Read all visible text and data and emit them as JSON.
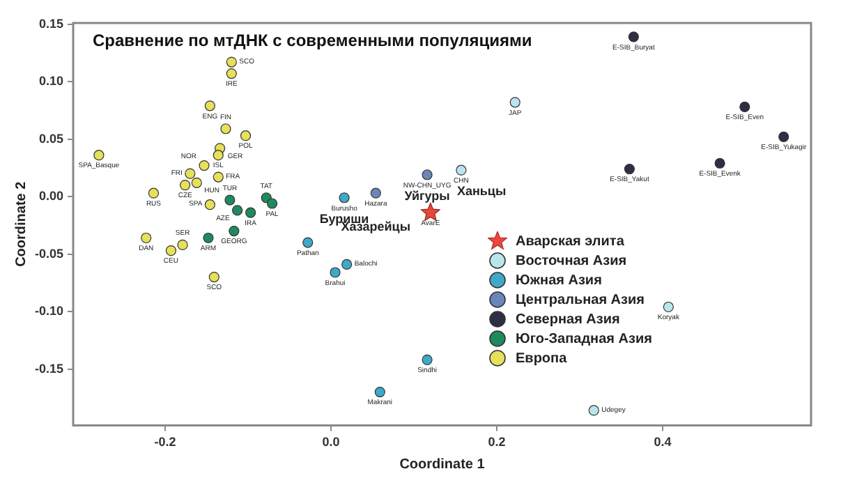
{
  "chart_data": {
    "type": "scatter",
    "title": "Сравнение по мтДНК с современными популяциями",
    "xlabel": "Coordinate 1",
    "ylabel": "Coordinate 2",
    "xlim": [
      -0.311,
      0.579
    ],
    "ylim": [
      -0.199,
      0.151
    ],
    "xticks": [
      {
        "value": -0.2,
        "label": "-0.2"
      },
      {
        "value": 0,
        "label": "0.0"
      },
      {
        "value": 0.2,
        "label": "0.2"
      },
      {
        "value": 0.4,
        "label": "0.4"
      }
    ],
    "yticks": [
      {
        "value": -0.15,
        "label": "-0.15"
      },
      {
        "value": -0.1,
        "label": "-0.10"
      },
      {
        "value": -0.05,
        "label": "-0.05"
      },
      {
        "value": 0,
        "label": "0.00"
      },
      {
        "value": 0.05,
        "label": "0.05"
      },
      {
        "value": 0.1,
        "label": "0.10"
      },
      {
        "value": 0.15,
        "label": "0.15"
      }
    ],
    "grid": false,
    "legend": "right",
    "marker": "circle",
    "series": [
      {
        "name": "Аварская элита",
        "color": "#e8473a",
        "marker": "star",
        "x": [
          0.12
        ],
        "values": [
          -0.014
        ],
        "value_labels": [
          "AvarE"
        ]
      },
      {
        "name": "Восточная Азия",
        "color": "#b9e6ec",
        "x": [
          0.222,
          0.157,
          0.407,
          0.317
        ],
        "values": [
          0.082,
          0.023,
          -0.096,
          -0.186
        ],
        "value_labels": [
          "JAP",
          "CHN",
          "Koryak",
          "Udegey"
        ]
      },
      {
        "name": "Южная Азия",
        "color": "#3fa9c9",
        "x": [
          -0.028,
          0.019,
          0.005,
          0.059,
          0.116,
          0.016
        ],
        "values": [
          -0.04,
          -0.059,
          -0.066,
          -0.17,
          -0.142,
          -0.001
        ],
        "value_labels": [
          "Pathan",
          "Balochi",
          "Brahui",
          "Makrani",
          "Sindhi",
          "Burusho"
        ]
      },
      {
        "name": "Центральная Азия",
        "color": "#6b86b8",
        "x": [
          0.054,
          0.116
        ],
        "values": [
          0.003,
          0.019
        ],
        "value_labels": [
          "Hazara",
          "NW-CHN_UYG"
        ]
      },
      {
        "name": "Северная Азия",
        "color": "#2e2f45",
        "x": [
          0.365,
          0.499,
          0.546,
          0.469,
          0.36
        ],
        "values": [
          0.139,
          0.078,
          0.052,
          0.029,
          0.024
        ],
        "value_labels": [
          "E-SIB_Buryat",
          "E-SIB_Even",
          "E-SIB_Yukagir",
          "E-SIB_Evenk",
          "E-SIB_Yakut"
        ]
      },
      {
        "name": "Юго-Западная Азия",
        "color": "#1e8a5e",
        "x": [
          -0.122,
          -0.078,
          -0.071,
          -0.113,
          -0.097,
          -0.148,
          -0.117
        ],
        "values": [
          -0.003,
          -0.001,
          -0.006,
          -0.012,
          -0.014,
          -0.036,
          -0.03
        ],
        "value_labels": [
          "TUR",
          "TAT",
          "PAL",
          "AZE",
          "IRA",
          "ARM",
          "GEORG"
        ]
      },
      {
        "name": "Европа",
        "color": "#e6e05a",
        "x": [
          -0.12,
          -0.12,
          -0.146,
          -0.127,
          -0.103,
          -0.134,
          -0.136,
          -0.28,
          -0.153,
          -0.136,
          -0.17,
          -0.176,
          -0.162,
          -0.214,
          -0.146,
          -0.223,
          -0.179,
          -0.193,
          -0.141
        ],
        "values": [
          0.117,
          0.107,
          0.079,
          0.059,
          0.053,
          0.042,
          0.036,
          0.036,
          0.027,
          0.017,
          0.02,
          0.01,
          0.012,
          0.003,
          -0.007,
          -0.036,
          -0.042,
          -0.047,
          -0.07
        ],
        "value_labels": [
          "SCO",
          "IRE",
          "ENG",
          "FIN",
          "POL",
          "GER",
          "ISL",
          "SPA_Basque",
          "NOR",
          "FRA",
          "FRI",
          "CZE",
          "HUN",
          "RUS",
          "SPA",
          "DAN",
          "SER",
          "CEU",
          "SCO"
        ]
      }
    ],
    "annotations": [
      {
        "text": "Уйгуры",
        "x": 0.116,
        "y": 0.019
      },
      {
        "text": "Хазарейцы",
        "x": 0.054,
        "y": 0.003
      },
      {
        "text": "Буриши",
        "x": 0.016,
        "y": -0.001
      },
      {
        "text": "Ханьцы",
        "x": 0.157,
        "y": 0.023
      }
    ]
  }
}
